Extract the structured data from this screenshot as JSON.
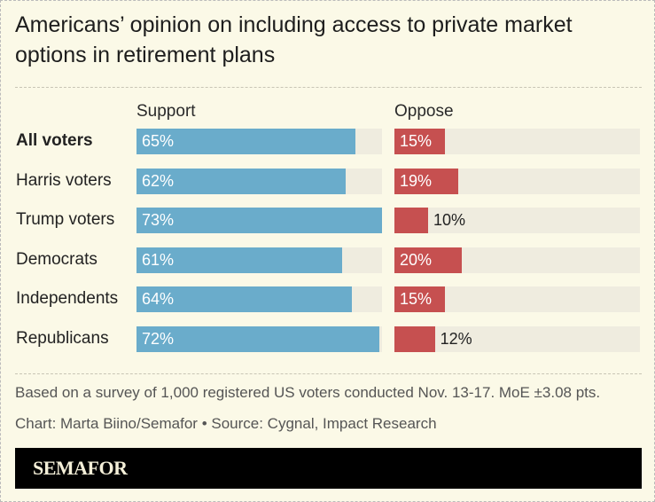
{
  "chart_data": {
    "type": "bar",
    "title": "Americans’ opinion on including access to private market options in retirement plans",
    "categories": [
      "All voters",
      "Harris voters",
      "Trump voters",
      "Democrats",
      "Independents",
      "Republicans"
    ],
    "series": [
      {
        "name": "Support",
        "values": [
          65,
          62,
          73,
          61,
          64,
          72
        ],
        "color": "#6aaccb"
      },
      {
        "name": "Oppose",
        "values": [
          15,
          19,
          10,
          20,
          15,
          12
        ],
        "color": "#c65050"
      }
    ],
    "value_suffix": "%",
    "track_color": "#efecdf",
    "highlighted_category": "All voters"
  },
  "notes": {
    "survey": "Based on a survey of 1,000 registered US voters conducted Nov. 13-17. MoE ±3.08 pts.",
    "credit": "Chart: Marta Biino/Semafor • Source: Cygnal, Impact Research"
  },
  "footer": {
    "logo": "SEMAFOR"
  }
}
